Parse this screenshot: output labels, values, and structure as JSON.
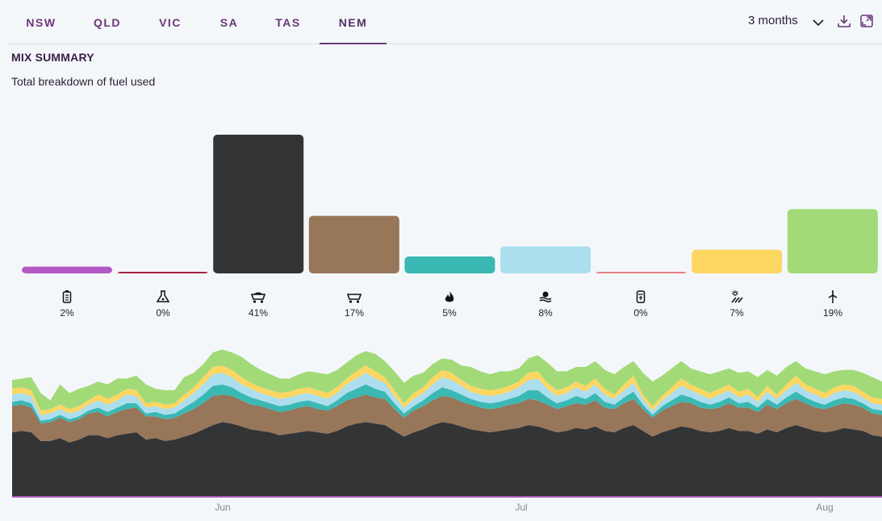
{
  "tabs": [
    {
      "label": "NSW",
      "active": false
    },
    {
      "label": "QLD",
      "active": false
    },
    {
      "label": "VIC",
      "active": false
    },
    {
      "label": "SA",
      "active": false
    },
    {
      "label": "TAS",
      "active": false
    },
    {
      "label": "NEM",
      "active": true
    }
  ],
  "range_selector": {
    "label": "3 months",
    "icon": "chevron-down-icon"
  },
  "toolbar": {
    "download_icon": "download-icon",
    "expand_icon": "expand-icon"
  },
  "summary": {
    "title": "MIX SUMMARY",
    "subtitle": "Total breakdown of fuel used"
  },
  "chart_data": [
    {
      "type": "bar",
      "categories": [
        "battery",
        "fuel-oil",
        "black-coal",
        "brown-coal",
        "gas",
        "hydro",
        "bio",
        "solar",
        "wind"
      ],
      "values": [
        2,
        0,
        41,
        17,
        5,
        8,
        0,
        7,
        19
      ],
      "value_labels": [
        "2%",
        "0%",
        "41%",
        "17%",
        "5%",
        "8%",
        "0%",
        "7%",
        "19%"
      ],
      "colors": [
        "#b358c4",
        "#a62040",
        "#333436",
        "#977659",
        "#3ab8b4",
        "#acdeee",
        "#e57f7f",
        "#fed662",
        "#a2da78"
      ],
      "icons": [
        "battery-icon",
        "flask-icon",
        "coal-cart-icon",
        "coal-cart-icon",
        "flame-icon",
        "hydro-icon",
        "bio-canister-icon",
        "solar-icon",
        "wind-icon"
      ]
    },
    {
      "type": "area",
      "stacked": true,
      "x_tick_labels": [
        "Jun",
        "Jul",
        "Aug"
      ],
      "series": [
        {
          "color": "#b358c4",
          "values": [
            1,
            1,
            1,
            1,
            1,
            1,
            1,
            1,
            1,
            1,
            1,
            1,
            1,
            1,
            1,
            1,
            1,
            1,
            1,
            1,
            1,
            1,
            1,
            1,
            1,
            1,
            1,
            1,
            1,
            1,
            1,
            1,
            1,
            1,
            1,
            1,
            1,
            1,
            1,
            1,
            1,
            1,
            1,
            1,
            1,
            1,
            1,
            1,
            1,
            1,
            1,
            1,
            1,
            1,
            1,
            1,
            1,
            1,
            1,
            1,
            1,
            1,
            1,
            1,
            1,
            1,
            1,
            1,
            1,
            1,
            1,
            1,
            1,
            1,
            1,
            1,
            1,
            1,
            1,
            1,
            1,
            1,
            1,
            1,
            1,
            1,
            1,
            1,
            1,
            1,
            1,
            1
          ]
        },
        {
          "color": "#333436",
          "values": [
            44,
            45,
            44,
            38,
            38,
            40,
            37,
            39,
            42,
            42,
            40,
            42,
            43,
            44,
            39,
            40,
            38,
            39,
            41,
            43,
            46,
            49,
            51,
            50,
            48,
            46,
            45,
            44,
            42,
            43,
            44,
            45,
            44,
            43,
            45,
            48,
            50,
            51,
            50,
            49,
            45,
            41,
            44,
            46,
            49,
            51,
            50,
            48,
            46,
            45,
            44,
            45,
            46,
            47,
            49,
            48,
            46,
            44,
            45,
            47,
            46,
            48,
            45,
            44,
            47,
            49,
            45,
            41,
            44,
            46,
            48,
            47,
            45,
            44,
            45,
            47,
            45,
            45,
            43,
            46,
            44,
            47,
            49,
            47,
            45,
            44,
            45,
            47,
            46,
            45,
            42,
            41
          ]
        },
        {
          "color": "#977659",
          "values": [
            18,
            18,
            17,
            12,
            13,
            14,
            14,
            14,
            15,
            16,
            15,
            16,
            17,
            17,
            16,
            15,
            15,
            15,
            16,
            17,
            18,
            20,
            19,
            19,
            18,
            17,
            17,
            16,
            16,
            16,
            17,
            17,
            16,
            16,
            17,
            18,
            18,
            19,
            18,
            18,
            15,
            13,
            15,
            16,
            17,
            18,
            18,
            17,
            17,
            16,
            16,
            16,
            17,
            17,
            18,
            18,
            17,
            16,
            17,
            17,
            17,
            18,
            16,
            16,
            17,
            18,
            15,
            13,
            15,
            16,
            17,
            17,
            16,
            16,
            16,
            17,
            16,
            16,
            15,
            17,
            16,
            17,
            18,
            17,
            16,
            16,
            17,
            17,
            17,
            16,
            15,
            15
          ]
        },
        {
          "color": "#3ab8b4",
          "values": [
            3,
            3,
            3,
            2,
            2,
            2,
            2,
            2,
            2,
            3,
            3,
            3,
            4,
            3,
            2,
            3,
            3,
            3,
            4,
            5,
            6,
            7,
            7,
            6,
            5,
            5,
            4,
            4,
            4,
            4,
            4,
            4,
            4,
            3,
            4,
            5,
            6,
            7,
            6,
            5,
            4,
            3,
            3,
            4,
            5,
            6,
            5,
            5,
            4,
            4,
            4,
            4,
            4,
            5,
            6,
            7,
            5,
            4,
            4,
            5,
            4,
            5,
            4,
            3,
            4,
            5,
            3,
            2,
            3,
            4,
            5,
            4,
            4,
            3,
            4,
            4,
            3,
            4,
            3,
            4,
            3,
            4,
            5,
            4,
            4,
            3,
            4,
            4,
            4,
            3,
            3,
            3
          ]
        },
        {
          "color": "#acdeee",
          "values": [
            5,
            5,
            5,
            4,
            4,
            4,
            4,
            4,
            4,
            5,
            5,
            5,
            6,
            5,
            4,
            4,
            4,
            4,
            5,
            6,
            7,
            8,
            8,
            7,
            6,
            6,
            5,
            5,
            5,
            5,
            5,
            5,
            5,
            5,
            5,
            6,
            7,
            8,
            7,
            6,
            5,
            4,
            5,
            5,
            6,
            7,
            7,
            6,
            5,
            5,
            5,
            5,
            5,
            6,
            7,
            8,
            6,
            5,
            5,
            6,
            5,
            6,
            5,
            4,
            5,
            6,
            4,
            3,
            4,
            5,
            6,
            5,
            5,
            4,
            5,
            5,
            4,
            5,
            4,
            5,
            4,
            5,
            6,
            5,
            5,
            4,
            5,
            5,
            5,
            4,
            4,
            4
          ]
        },
        {
          "color": "#fed662",
          "values": [
            4,
            4,
            4,
            3,
            3,
            3,
            3,
            3,
            3,
            4,
            4,
            4,
            4,
            4,
            3,
            3,
            3,
            3,
            4,
            4,
            5,
            5,
            5,
            5,
            5,
            4,
            4,
            4,
            4,
            4,
            4,
            4,
            4,
            4,
            4,
            4,
            5,
            5,
            5,
            4,
            4,
            3,
            4,
            4,
            5,
            5,
            5,
            4,
            4,
            4,
            4,
            4,
            4,
            4,
            5,
            5,
            4,
            4,
            4,
            4,
            4,
            4,
            4,
            3,
            4,
            5,
            3,
            3,
            3,
            4,
            5,
            4,
            4,
            4,
            4,
            4,
            4,
            4,
            3,
            4,
            3,
            4,
            5,
            4,
            4,
            4,
            4,
            4,
            4,
            4,
            4,
            4
          ]
        },
        {
          "color": "#a2da78",
          "values": [
            6,
            6,
            9,
            12,
            6,
            14,
            11,
            12,
            10,
            9,
            10,
            11,
            7,
            10,
            13,
            9,
            10,
            9,
            12,
            10,
            9,
            10,
            11,
            12,
            14,
            13,
            12,
            11,
            10,
            9,
            10,
            11,
            12,
            13,
            12,
            11,
            11,
            10,
            12,
            11,
            13,
            14,
            12,
            10,
            9,
            8,
            9,
            10,
            13,
            12,
            11,
            12,
            10,
            9,
            10,
            11,
            14,
            13,
            11,
            10,
            13,
            12,
            13,
            14,
            12,
            10,
            15,
            17,
            14,
            13,
            12,
            11,
            12,
            13,
            12,
            11,
            13,
            12,
            14,
            11,
            13,
            12,
            10,
            11,
            12,
            13,
            11,
            10,
            11,
            13,
            14,
            12
          ]
        }
      ]
    }
  ]
}
